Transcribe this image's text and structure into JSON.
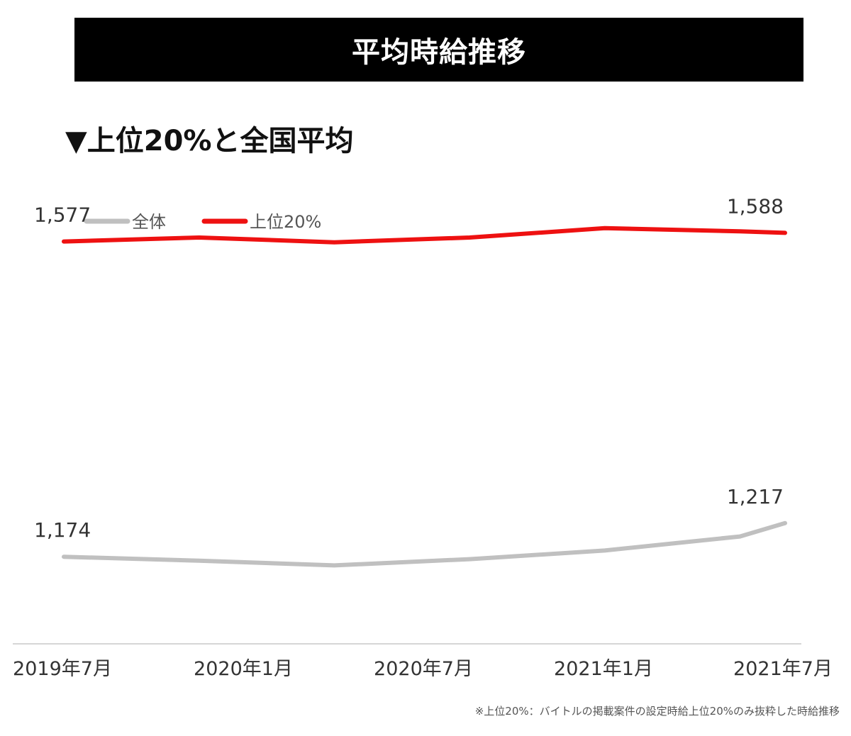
{
  "title": "平均時給推移",
  "subtitle": "▼上位20%と全国平均",
  "footnote": "※上位20%：バイトルの掲載案件の設定時給上位20%のみ抜粋した時給推移",
  "chart_data": {
    "type": "line",
    "x_labels": [
      "2019年7月",
      "2020年1月",
      "2020年7月",
      "2021年1月",
      "2021年7月"
    ],
    "x": [
      0,
      0.75,
      1.5,
      2.25,
      3,
      3.75,
      4
    ],
    "series": [
      {
        "name": "全体",
        "color": "#c0c0c0",
        "values": [
          1174,
          1169,
          1163,
          1171,
          1182,
          1200,
          1217
        ],
        "labels": {
          "0": "1,174",
          "6": "1,217"
        }
      },
      {
        "name": "上位20%",
        "color": "#ee1111",
        "values": [
          1577,
          1582,
          1576,
          1582,
          1594,
          1590,
          1588
        ],
        "labels": {
          "0": "1,577",
          "6": "1,588"
        }
      }
    ],
    "legend": "top-left",
    "grid": false,
    "ylim": [
      1070,
      1650
    ]
  }
}
